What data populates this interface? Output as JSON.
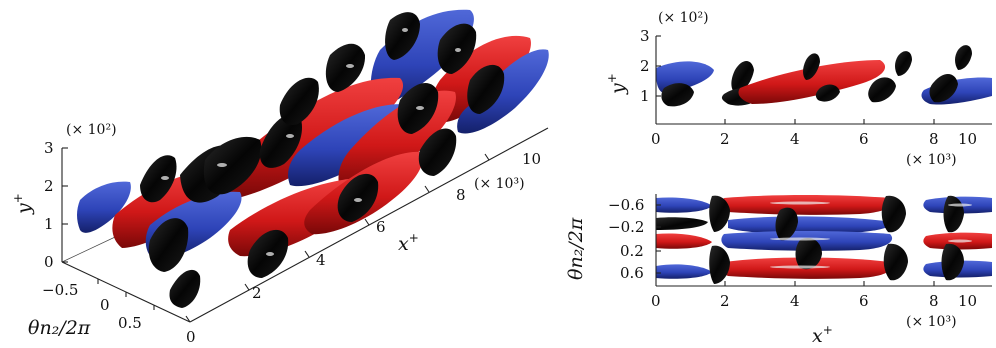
{
  "figure": {
    "left_panel": {
      "y_multiplier": "(× 10²)",
      "y_label": "y",
      "y_label_sup": "+",
      "y_ticks": [
        "3",
        "2",
        "1",
        "0"
      ],
      "theta_ticks": [
        "−0.5",
        "0",
        "0.5"
      ],
      "theta_label": "θn₂/2π",
      "x_ticks": [
        "0",
        "2",
        "4",
        "6",
        "8",
        "10"
      ],
      "x_multiplier": "(× 10³)",
      "x_label": "x",
      "x_label_sup": "+"
    },
    "top_right_panel": {
      "y_multiplier": "(× 10²)",
      "y_label": "y",
      "y_label_sup": "+",
      "y_ticks": [
        "3",
        "2",
        "1"
      ],
      "x_ticks": [
        "0",
        "2",
        "4",
        "6",
        "8",
        "10"
      ],
      "x_multiplier": "(× 10³)"
    },
    "bottom_right_panel": {
      "y_label": "θn₂/2π",
      "y_ticks": [
        "−0.6",
        "−0.2",
        "0.2",
        "0.6"
      ],
      "x_ticks": [
        "0",
        "2",
        "4",
        "6",
        "8",
        "10"
      ],
      "x_multiplier": "(× 10³)",
      "x_label": "x",
      "x_label_sup": "+"
    },
    "colors": {
      "positive_structure": "#d01818",
      "negative_structure": "#2e44b8",
      "vortex_structure": "#0c0c0c"
    }
  }
}
